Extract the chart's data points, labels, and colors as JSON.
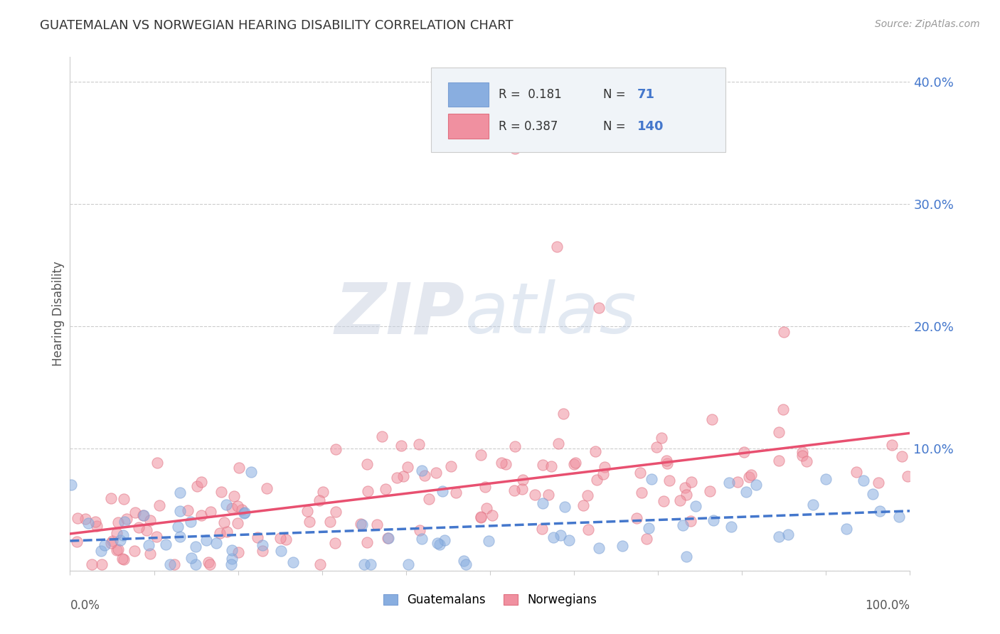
{
  "title": "GUATEMALAN VS NORWEGIAN HEARING DISABILITY CORRELATION CHART",
  "source": "Source: ZipAtlas.com",
  "ylabel": "Hearing Disability",
  "xlim": [
    0.0,
    1.0
  ],
  "ylim": [
    0.0,
    0.42
  ],
  "yticks": [
    0.0,
    0.1,
    0.2,
    0.3,
    0.4
  ],
  "ytick_labels_right": [
    "",
    "10.0%",
    "20.0%",
    "30.0%",
    "40.0%"
  ],
  "guatemalan_color": "#89aee0",
  "guatemalan_edge": "#7a9fd4",
  "norwegian_color": "#f090a0",
  "norwegian_edge": "#e07080",
  "trend_guatemalan_color": "#4477cc",
  "trend_norwegian_color": "#e85070",
  "legend_text_color": "#4477cc",
  "legend_R_color": "#333333",
  "background_color": "#ffffff",
  "grid_color": "#cccccc",
  "title_color": "#333333",
  "source_color": "#999999",
  "ylabel_color": "#555555",
  "watermark_zip_color": "#d0d8e8",
  "watermark_atlas_color": "#c8d8f0",
  "legend_box_color": "#f0f4f8",
  "legend_box_edge": "#cccccc"
}
